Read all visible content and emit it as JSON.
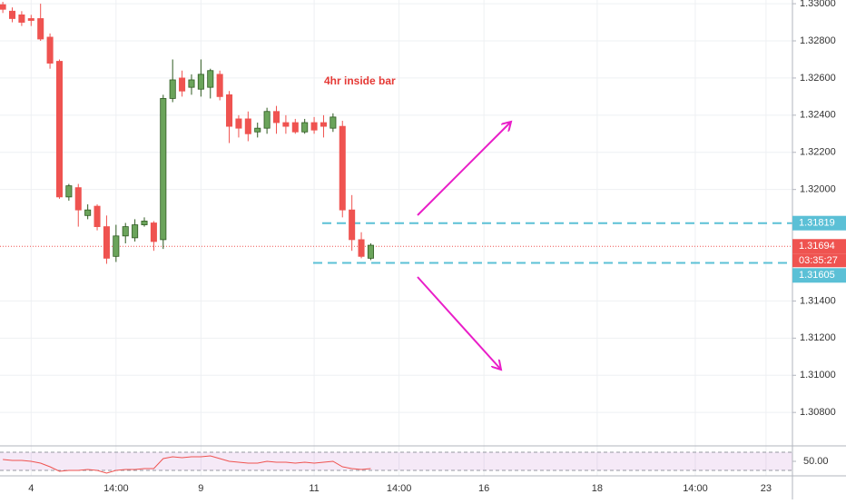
{
  "chart_data": {
    "type": "candlestick",
    "annotation": "4hr inside bar",
    "x": [
      0,
      1,
      2,
      3,
      4,
      5,
      6,
      7,
      8,
      9,
      10,
      11,
      12,
      13,
      14,
      15,
      16,
      17,
      18,
      19,
      20,
      21,
      22,
      23,
      24,
      25,
      26,
      27,
      28,
      29,
      30,
      31,
      32,
      33,
      34,
      35,
      36,
      37,
      38,
      39
    ],
    "open": [
      1.32995,
      1.3296,
      1.3294,
      1.3292,
      1.3292,
      1.3282,
      1.3269,
      1.3196,
      1.3201,
      1.3186,
      1.3191,
      1.318,
      1.3164,
      1.3175,
      1.3174,
      1.3181,
      1.3182,
      1.3173,
      1.3249,
      1.326,
      1.3255,
      1.3254,
      1.3255,
      1.3262,
      1.3251,
      1.3238,
      1.3238,
      1.3231,
      1.3233,
      1.3242,
      1.3236,
      1.3236,
      1.3231,
      1.3236,
      1.3236,
      1.3233,
      1.3234,
      1.3189,
      1.3173,
      1.3163
    ],
    "high": [
      1.3301,
      1.3298,
      1.3296,
      1.3294,
      1.33,
      1.3284,
      1.327,
      1.3203,
      1.3203,
      1.3192,
      1.3192,
      1.3186,
      1.3181,
      1.3182,
      1.3184,
      1.3185,
      1.3183,
      1.3251,
      1.327,
      1.3264,
      1.3262,
      1.327,
      1.3265,
      1.3264,
      1.3253,
      1.324,
      1.3242,
      1.3236,
      1.3244,
      1.3245,
      1.324,
      1.3238,
      1.3238,
      1.3239,
      1.324,
      1.3241,
      1.3237,
      1.3197,
      1.3177,
      1.3171
    ],
    "low": [
      1.3295,
      1.329,
      1.3288,
      1.3288,
      1.328,
      1.3265,
      1.3195,
      1.3194,
      1.318,
      1.3184,
      1.3178,
      1.316,
      1.3161,
      1.3171,
      1.3172,
      1.318,
      1.3167,
      1.3168,
      1.3247,
      1.325,
      1.3251,
      1.325,
      1.3249,
      1.3248,
      1.3225,
      1.3228,
      1.3226,
      1.3228,
      1.323,
      1.323,
      1.323,
      1.323,
      1.323,
      1.323,
      1.3228,
      1.3231,
      1.3185,
      1.3167,
      1.3163,
      1.3162
    ],
    "close": [
      1.3297,
      1.3292,
      1.329,
      1.3291,
      1.3281,
      1.3268,
      1.3196,
      1.3202,
      1.3189,
      1.3189,
      1.318,
      1.3163,
      1.3175,
      1.318,
      1.3181,
      1.3183,
      1.3172,
      1.3249,
      1.3259,
      1.3253,
      1.3259,
      1.3262,
      1.3264,
      1.325,
      1.3234,
      1.3233,
      1.323,
      1.3233,
      1.3242,
      1.3236,
      1.3234,
      1.3231,
      1.3236,
      1.3232,
      1.3234,
      1.3239,
      1.3189,
      1.3173,
      1.3164,
      1.317
    ],
    "up_color": "#6ba45b",
    "up_border": "#2e5a20",
    "down_color": "#ef5350",
    "xlim": [
      -0.3,
      83.7
    ],
    "xticks": [
      {
        "value": 3,
        "label": "4"
      },
      {
        "value": 12,
        "label": "14:00"
      },
      {
        "value": 21,
        "label": "9"
      },
      {
        "value": 33,
        "label": "11"
      },
      {
        "value": 42,
        "label": "14:00"
      },
      {
        "value": 51,
        "label": "16"
      },
      {
        "value": 63,
        "label": "18"
      },
      {
        "value": 73.4,
        "label": "14:00"
      },
      {
        "value": 80.9,
        "label": "23"
      }
    ],
    "ylim": [
      1.3062,
      1.3302
    ],
    "yticks": [
      {
        "value": 1.33,
        "label": "1.33000"
      },
      {
        "value": 1.328,
        "label": "1.32800"
      },
      {
        "value": 1.326,
        "label": "1.32600"
      },
      {
        "value": 1.324,
        "label": "1.32400"
      },
      {
        "value": 1.322,
        "label": "1.32200"
      },
      {
        "value": 1.32,
        "label": "1.32000"
      },
      {
        "value": 1.314,
        "label": "1.31400"
      },
      {
        "value": 1.312,
        "label": "1.31200"
      },
      {
        "value": 1.31,
        "label": "1.31000"
      },
      {
        "value": 1.308,
        "label": "1.30800"
      }
    ],
    "grid": true,
    "levels": [
      {
        "value": 1.31819,
        "label": "1.31819"
      },
      {
        "value": 1.31605,
        "label": "1.31605"
      }
    ],
    "level_color": "#5bc0d6",
    "last_price": {
      "value": 1.31694,
      "label": "1.31694",
      "countdown": "03:35:27",
      "color": "#ef5350"
    },
    "indicator": {
      "type": "line",
      "color": "#ef5350",
      "band": [
        30,
        70
      ],
      "ylim": [
        20,
        84
      ],
      "yticks": [
        {
          "value": 50,
          "label": "50.00"
        }
      ],
      "values": [
        54,
        52,
        52,
        50,
        46,
        38,
        28,
        30,
        30,
        32,
        30,
        24,
        30,
        32,
        32,
        34,
        34,
        56,
        60,
        58,
        60,
        60,
        62,
        56,
        50,
        48,
        46,
        46,
        50,
        48,
        48,
        46,
        48,
        46,
        48,
        50,
        38,
        34,
        32,
        34
      ]
    }
  }
}
